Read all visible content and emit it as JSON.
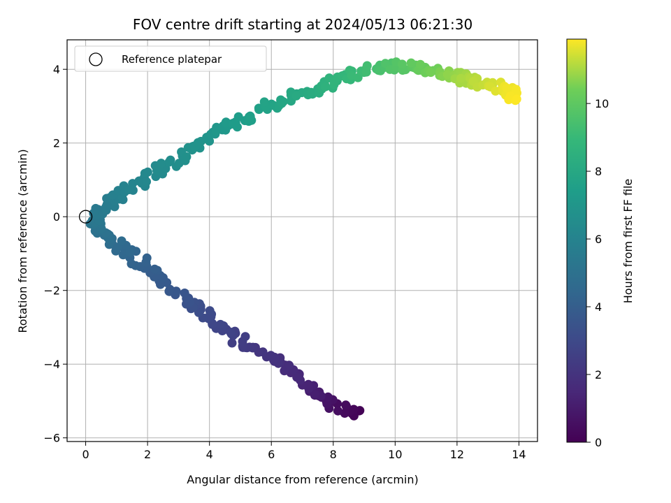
{
  "chart_data": {
    "type": "scatter",
    "title": "FOV centre drift starting at 2024/05/13 06:21:30",
    "xlabel": "Angular distance from reference (arcmin)",
    "ylabel": "Rotation from reference (arcmin)",
    "xlim": [
      -0.6,
      14.6
    ],
    "ylim": [
      -6.1,
      4.8
    ],
    "xticks": [
      0,
      2,
      4,
      6,
      8,
      10,
      12,
      14
    ],
    "yticks": [
      -6,
      -4,
      -2,
      0,
      2,
      4
    ],
    "grid": true,
    "legend": {
      "position": "top-left",
      "entries": [
        "Reference platepar"
      ]
    },
    "reference_point": {
      "x": 0,
      "y": 0
    },
    "colorbar": {
      "label": "Hours from first FF file",
      "range": [
        0,
        11.9
      ],
      "ticks": [
        0,
        2,
        4,
        6,
        8,
        10
      ],
      "colormap": "viridis"
    },
    "series": [
      {
        "color_by": "hours",
        "anchors": [
          {
            "x": 8.8,
            "y": -5.4,
            "hours": 0.0
          },
          {
            "x": 7.9,
            "y": -5.1,
            "hours": 0.6
          },
          {
            "x": 7.3,
            "y": -4.7,
            "hours": 1.2
          },
          {
            "x": 6.5,
            "y": -4.1,
            "hours": 1.7
          },
          {
            "x": 5.7,
            "y": -3.7,
            "hours": 2.1
          },
          {
            "x": 4.7,
            "y": -3.2,
            "hours": 2.6
          },
          {
            "x": 4.0,
            "y": -2.7,
            "hours": 3.0
          },
          {
            "x": 3.3,
            "y": -2.3,
            "hours": 3.4
          },
          {
            "x": 2.5,
            "y": -1.8,
            "hours": 3.8
          },
          {
            "x": 1.6,
            "y": -1.1,
            "hours": 4.3
          },
          {
            "x": 0.8,
            "y": -0.6,
            "hours": 4.8
          },
          {
            "x": 0.3,
            "y": -0.2,
            "hours": 5.2
          },
          {
            "x": 0.5,
            "y": 0.2,
            "hours": 5.5
          },
          {
            "x": 1.2,
            "y": 0.6,
            "hours": 5.9
          },
          {
            "x": 2.2,
            "y": 1.2,
            "hours": 6.3
          },
          {
            "x": 3.2,
            "y": 1.7,
            "hours": 6.7
          },
          {
            "x": 4.2,
            "y": 2.3,
            "hours": 7.0
          },
          {
            "x": 5.1,
            "y": 2.6,
            "hours": 7.4
          },
          {
            "x": 6.1,
            "y": 3.1,
            "hours": 7.8
          },
          {
            "x": 7.2,
            "y": 3.4,
            "hours": 8.2
          },
          {
            "x": 8.2,
            "y": 3.7,
            "hours": 8.7
          },
          {
            "x": 9.2,
            "y": 4.0,
            "hours": 9.3
          },
          {
            "x": 10.2,
            "y": 4.1,
            "hours": 9.8
          },
          {
            "x": 11.2,
            "y": 4.0,
            "hours": 10.4
          },
          {
            "x": 12.0,
            "y": 3.8,
            "hours": 10.9
          },
          {
            "x": 12.8,
            "y": 3.6,
            "hours": 11.3
          },
          {
            "x": 13.6,
            "y": 3.5,
            "hours": 11.7
          },
          {
            "x": 13.9,
            "y": 3.2,
            "hours": 11.9
          }
        ]
      }
    ]
  }
}
